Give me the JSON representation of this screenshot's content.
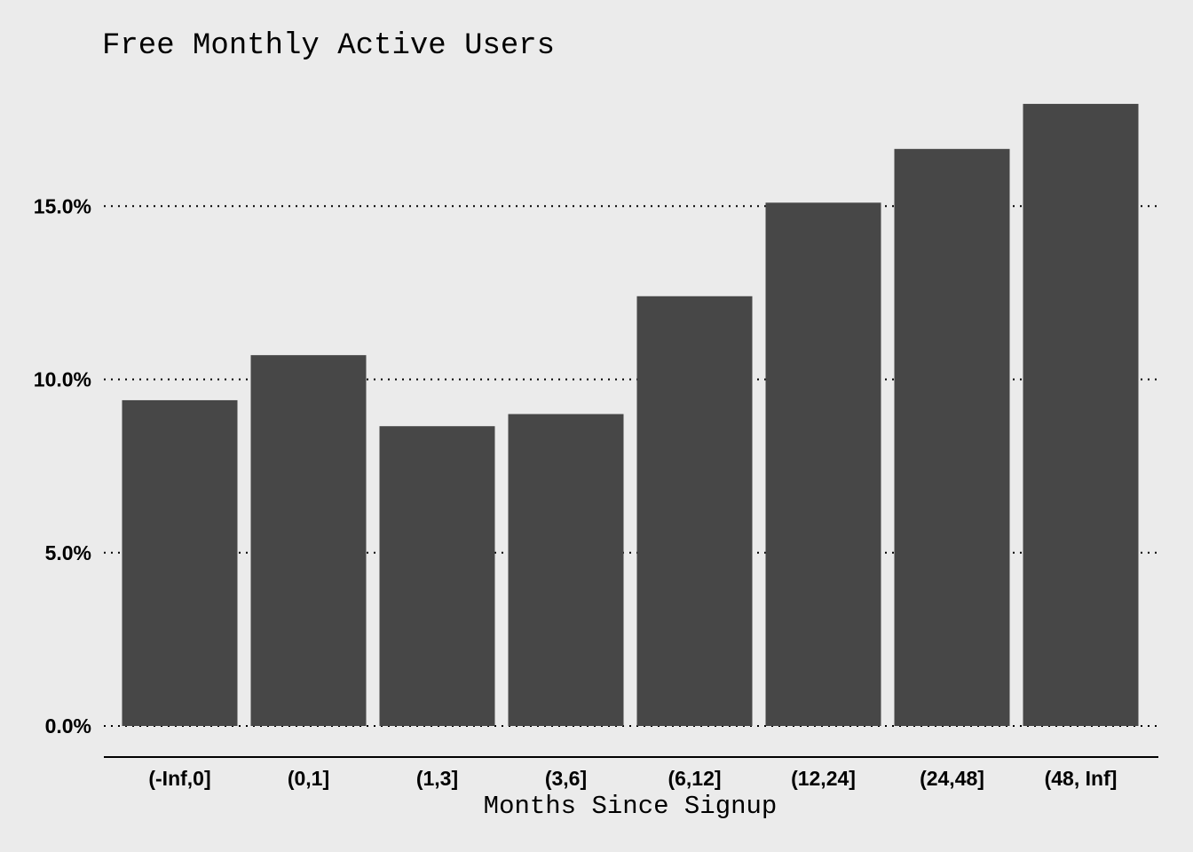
{
  "chart_data": {
    "type": "bar",
    "title": "Free Monthly Active Users",
    "xlabel": "Months Since Signup",
    "ylabel": "",
    "categories": [
      "(-Inf,0]",
      "(0,1]",
      "(1,3]",
      "(3,6]",
      "(6,12]",
      "(12,24]",
      "(24,48]",
      "(48, Inf]"
    ],
    "values": [
      9.4,
      10.7,
      8.65,
      9.0,
      12.4,
      15.1,
      16.65,
      17.95
    ],
    "ylim": [
      0,
      18
    ],
    "yticks": [
      0,
      5,
      10,
      15
    ],
    "yticklabels": [
      "0.0%",
      "5.0%",
      "10.0%",
      "15.0%"
    ],
    "grid": "horizontal-dotted",
    "legend": "none",
    "colors": {
      "bar": "#474747",
      "background": "#ebebeb",
      "grid": "#000000",
      "axis": "#000000"
    }
  }
}
